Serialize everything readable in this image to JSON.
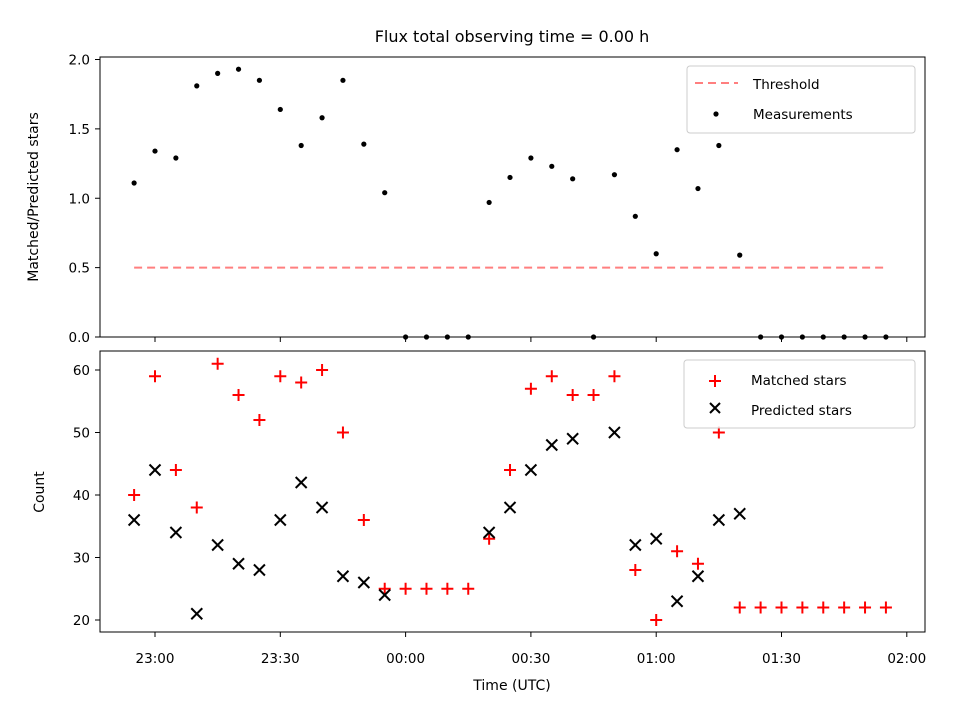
{
  "chart_data": [
    {
      "type": "scatter",
      "title": "Flux total observing time = 0.00 h",
      "xlabel": "",
      "ylabel": "Matched/Predicted stars",
      "ylim": [
        0,
        2.0
      ],
      "yticks": [
        "0.0",
        "0.5",
        "1.0",
        "1.5",
        "2.0"
      ],
      "legend_position": "top-right",
      "threshold": {
        "name": "Threshold",
        "value": 0.5,
        "x_start": "22:55",
        "x_end": "01:55",
        "color": "#ff7f7f",
        "style": "dashed"
      },
      "series": [
        {
          "name": "Measurements",
          "color": "#000000",
          "marker": "dot",
          "x": [
            "22:55",
            "23:00",
            "23:05",
            "23:10",
            "23:15",
            "23:20",
            "23:25",
            "23:30",
            "23:35",
            "23:40",
            "23:45",
            "23:50",
            "23:55",
            "00:00",
            "00:05",
            "00:10",
            "00:15",
            "00:20",
            "00:25",
            "00:30",
            "00:35",
            "00:40",
            "00:45",
            "00:50",
            "00:55",
            "01:00",
            "01:05",
            "01:10",
            "01:15",
            "01:20",
            "01:25",
            "01:30",
            "01:35",
            "01:40",
            "01:45",
            "01:50",
            "01:55"
          ],
          "y": [
            1.11,
            1.34,
            1.29,
            1.81,
            1.9,
            1.93,
            1.85,
            1.64,
            1.38,
            1.58,
            1.85,
            1.39,
            1.04,
            0.0,
            0.0,
            0.0,
            0.0,
            0.97,
            1.15,
            1.29,
            1.23,
            1.14,
            0.0,
            1.17,
            0.87,
            0.6,
            1.35,
            1.07,
            1.38,
            0.59,
            0.0,
            0.0,
            0.0,
            0.0,
            0.0,
            0.0,
            0.0
          ]
        }
      ]
    },
    {
      "type": "scatter",
      "title": "",
      "xlabel": "Time (UTC)",
      "ylabel": "Count",
      "ylim": [
        18,
        63
      ],
      "yticks": [
        "20",
        "30",
        "40",
        "50",
        "60"
      ],
      "xticks": [
        "23:00",
        "23:30",
        "00:00",
        "00:30",
        "01:00",
        "01:30",
        "02:00"
      ],
      "legend_position": "top-right",
      "series": [
        {
          "name": "Matched stars",
          "color": "#ff0000",
          "marker": "plus",
          "x": [
            "22:55",
            "23:00",
            "23:05",
            "23:10",
            "23:15",
            "23:20",
            "23:25",
            "23:30",
            "23:35",
            "23:40",
            "23:45",
            "23:50",
            "23:55",
            "00:00",
            "00:05",
            "00:10",
            "00:15",
            "00:20",
            "00:25",
            "00:30",
            "00:35",
            "00:40",
            "00:45",
            "00:50",
            "00:55",
            "01:00",
            "01:05",
            "01:10",
            "01:15",
            "01:20",
            "01:25",
            "01:30",
            "01:35",
            "01:40",
            "01:45",
            "01:50",
            "01:55"
          ],
          "y": [
            40,
            59,
            44,
            38,
            61,
            56,
            52,
            59,
            58,
            60,
            50,
            36,
            25,
            25,
            25,
            25,
            25,
            33,
            44,
            57,
            59,
            56,
            56,
            59,
            28,
            20,
            31,
            29,
            50,
            22,
            22,
            22,
            22,
            22,
            22,
            22,
            22
          ]
        },
        {
          "name": "Predicted stars",
          "color": "#000000",
          "marker": "x",
          "x": [
            "22:55",
            "23:00",
            "23:05",
            "23:10",
            "23:15",
            "23:20",
            "23:25",
            "23:30",
            "23:35",
            "23:40",
            "23:45",
            "23:50",
            "23:55",
            "00:20",
            "00:25",
            "00:30",
            "00:35",
            "00:40",
            "00:50",
            "00:55",
            "01:00",
            "01:05",
            "01:10",
            "01:15",
            "01:20"
          ],
          "y": [
            36,
            44,
            34,
            21,
            32,
            29,
            28,
            36,
            42,
            38,
            27,
            26,
            24,
            34,
            38,
            44,
            48,
            49,
            50,
            32,
            33,
            23,
            27,
            36,
            37
          ]
        }
      ]
    }
  ]
}
